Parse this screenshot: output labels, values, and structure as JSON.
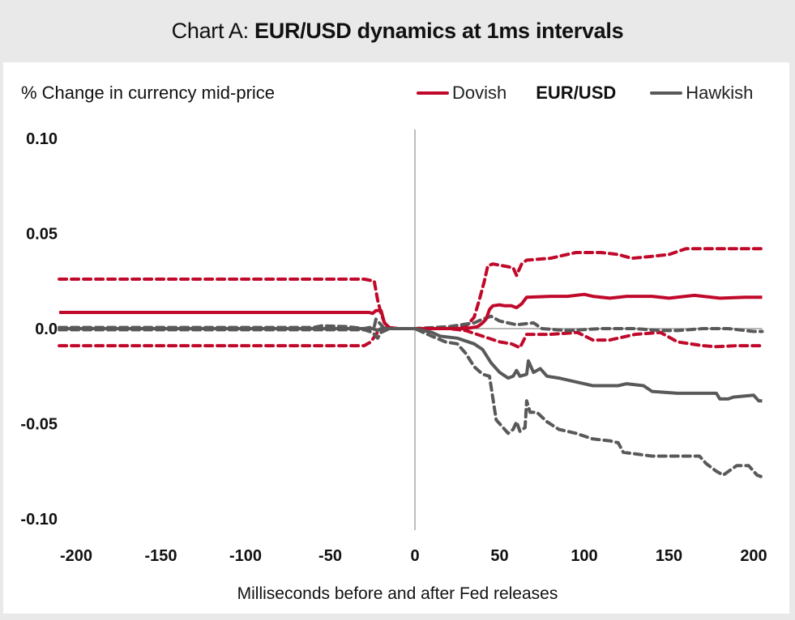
{
  "header": {
    "title_prefix": "Chart A: ",
    "title_bold": "EUR/USD dynamics at 1ms intervals"
  },
  "colors": {
    "dovish": "#c0092a",
    "hawkish": "#595959",
    "zero_line": "#8c8c8c",
    "vertical_line": "#bdbdbd"
  },
  "chart_data": {
    "type": "line",
    "title": "Chart A: EUR/USD dynamics at 1ms intervals",
    "ylabel": "% Change in currency mid-price",
    "xlabel": "Milliseconds before and after Fed releases",
    "legend": {
      "placement": "top-right",
      "entries": [
        "Dovish",
        "EUR/USD",
        "Hawkish"
      ]
    },
    "xlim": [
      -210,
      205
    ],
    "ylim": [
      -0.1,
      0.1
    ],
    "x_ticks": [
      -200,
      -150,
      -100,
      -50,
      0,
      50,
      100,
      150,
      200
    ],
    "x_tick_labels": [
      "-200",
      "-150",
      "-100",
      "-50",
      "0",
      "50",
      "100",
      "150",
      "200"
    ],
    "y_ticks": [
      0.1,
      0.05,
      0.0,
      -0.05,
      -0.1
    ],
    "y_tick_labels": [
      "0.10",
      "0.05",
      "0.0",
      "-0.05",
      "-0.10"
    ],
    "grid": false,
    "series": [
      {
        "name": "Dovish mean",
        "group": "dovish",
        "style": "solid",
        "points": [
          [
            -210,
            0.0085
          ],
          [
            -27,
            0.0085
          ],
          [
            -25,
            0.008
          ],
          [
            -23,
            0.0095
          ],
          [
            -20,
            0.0095
          ],
          [
            -18,
            0.003
          ],
          [
            -15,
            0.0005
          ],
          [
            -10,
            0.0
          ],
          [
            0,
            0.0
          ],
          [
            30,
            0.0
          ],
          [
            37,
            0.001
          ],
          [
            40,
            0.003
          ],
          [
            42,
            0.005
          ],
          [
            44,
            0.01
          ],
          [
            46,
            0.012
          ],
          [
            50,
            0.0125
          ],
          [
            53,
            0.012
          ],
          [
            57,
            0.012
          ],
          [
            60,
            0.011
          ],
          [
            63,
            0.013
          ],
          [
            66,
            0.0165
          ],
          [
            80,
            0.017
          ],
          [
            90,
            0.017
          ],
          [
            100,
            0.018
          ],
          [
            105,
            0.017
          ],
          [
            115,
            0.016
          ],
          [
            125,
            0.017
          ],
          [
            140,
            0.017
          ],
          [
            150,
            0.016
          ],
          [
            165,
            0.0175
          ],
          [
            180,
            0.016
          ],
          [
            195,
            0.0165
          ],
          [
            205,
            0.0165
          ]
        ]
      },
      {
        "name": "Dovish upper band",
        "group": "dovish",
        "style": "dashed",
        "points": [
          [
            -210,
            0.026
          ],
          [
            -30,
            0.026
          ],
          [
            -24,
            0.025
          ],
          [
            -22,
            0.015
          ],
          [
            -20,
            0.008
          ],
          [
            -18,
            0.003
          ],
          [
            -15,
            0.0005
          ],
          [
            -10,
            0.0
          ],
          [
            0,
            0.0
          ],
          [
            30,
            0.001
          ],
          [
            35,
            0.006
          ],
          [
            38,
            0.015
          ],
          [
            41,
            0.025
          ],
          [
            43,
            0.033
          ],
          [
            46,
            0.034
          ],
          [
            52,
            0.033
          ],
          [
            58,
            0.032
          ],
          [
            60,
            0.028
          ],
          [
            63,
            0.034
          ],
          [
            66,
            0.036
          ],
          [
            80,
            0.037
          ],
          [
            95,
            0.04
          ],
          [
            110,
            0.04
          ],
          [
            120,
            0.039
          ],
          [
            128,
            0.037
          ],
          [
            140,
            0.038
          ],
          [
            150,
            0.039
          ],
          [
            160,
            0.042
          ],
          [
            175,
            0.042
          ],
          [
            190,
            0.042
          ],
          [
            205,
            0.042
          ]
        ]
      },
      {
        "name": "Dovish lower band",
        "group": "dovish",
        "style": "dashed",
        "points": [
          [
            -210,
            -0.009
          ],
          [
            -30,
            -0.009
          ],
          [
            -26,
            -0.007
          ],
          [
            -23,
            -0.003
          ],
          [
            -20,
            0.0
          ],
          [
            -15,
            0.0005
          ],
          [
            -10,
            0.0
          ],
          [
            0,
            0.0
          ],
          [
            20,
            0.0
          ],
          [
            30,
            -0.001
          ],
          [
            40,
            -0.004
          ],
          [
            50,
            -0.007
          ],
          [
            57,
            -0.008
          ],
          [
            62,
            -0.01
          ],
          [
            66,
            -0.003
          ],
          [
            80,
            -0.003
          ],
          [
            96,
            -0.002
          ],
          [
            105,
            -0.006
          ],
          [
            115,
            -0.006
          ],
          [
            130,
            -0.003
          ],
          [
            145,
            -0.002
          ],
          [
            155,
            -0.007
          ],
          [
            170,
            -0.009
          ],
          [
            178,
            -0.0095
          ],
          [
            190,
            -0.009
          ],
          [
            205,
            -0.009
          ]
        ]
      },
      {
        "name": "Hawkish mean",
        "group": "hawkish",
        "style": "solid",
        "points": [
          [
            -210,
            0.0
          ],
          [
            -25,
            0.0
          ],
          [
            -22,
            -0.001
          ],
          [
            -20,
            0.0
          ],
          [
            -15,
            0.0
          ],
          [
            0,
            0.0
          ],
          [
            10,
            -0.002
          ],
          [
            15,
            -0.004
          ],
          [
            25,
            -0.005
          ],
          [
            35,
            -0.008
          ],
          [
            40,
            -0.011
          ],
          [
            45,
            -0.018
          ],
          [
            50,
            -0.023
          ],
          [
            55,
            -0.026
          ],
          [
            58,
            -0.025
          ],
          [
            60,
            -0.022
          ],
          [
            62,
            -0.025
          ],
          [
            66,
            -0.024
          ],
          [
            67,
            -0.017
          ],
          [
            70,
            -0.023
          ],
          [
            74,
            -0.021
          ],
          [
            78,
            -0.025
          ],
          [
            85,
            -0.026
          ],
          [
            95,
            -0.028
          ],
          [
            105,
            -0.03
          ],
          [
            120,
            -0.03
          ],
          [
            125,
            -0.029
          ],
          [
            135,
            -0.03
          ],
          [
            140,
            -0.033
          ],
          [
            155,
            -0.034
          ],
          [
            170,
            -0.034
          ],
          [
            178,
            -0.034
          ],
          [
            180,
            -0.037
          ],
          [
            185,
            -0.037
          ],
          [
            188,
            -0.036
          ],
          [
            200,
            -0.035
          ],
          [
            203,
            -0.038
          ],
          [
            205,
            -0.038
          ]
        ]
      },
      {
        "name": "Hawkish upper band",
        "group": "hawkish",
        "style": "dashed",
        "points": [
          [
            -210,
            0.0006
          ],
          [
            -60,
            0.0006
          ],
          [
            -55,
            0.0015
          ],
          [
            -40,
            0.001
          ],
          [
            -30,
            0.0
          ],
          [
            -24,
            0.001
          ],
          [
            -23,
            0.005
          ],
          [
            -21,
            0.003
          ],
          [
            -18,
            0.0
          ],
          [
            0,
            0.0
          ],
          [
            20,
            0.001
          ],
          [
            35,
            0.003
          ],
          [
            40,
            0.005
          ],
          [
            45,
            0.0065
          ],
          [
            50,
            0.004
          ],
          [
            60,
            0.002
          ],
          [
            70,
            0.003
          ],
          [
            75,
            0.0
          ],
          [
            90,
            -0.001
          ],
          [
            110,
            0.0
          ],
          [
            130,
            0.0
          ],
          [
            145,
            -0.001
          ],
          [
            155,
            -0.001
          ],
          [
            170,
            0.0
          ],
          [
            185,
            0.0
          ],
          [
            200,
            -0.0015
          ],
          [
            205,
            -0.0015
          ]
        ]
      },
      {
        "name": "Hawkish lower band",
        "group": "hawkish",
        "style": "dashed",
        "points": [
          [
            -210,
            -0.0006
          ],
          [
            -30,
            -0.0006
          ],
          [
            -25,
            -0.002
          ],
          [
            -22,
            -0.005
          ],
          [
            -20,
            -0.002
          ],
          [
            -15,
            0.0
          ],
          [
            0,
            0.0
          ],
          [
            10,
            -0.004
          ],
          [
            18,
            -0.007
          ],
          [
            25,
            -0.008
          ],
          [
            30,
            -0.013
          ],
          [
            35,
            -0.02
          ],
          [
            40,
            -0.024
          ],
          [
            44,
            -0.025
          ],
          [
            48,
            -0.048
          ],
          [
            52,
            -0.052
          ],
          [
            55,
            -0.055
          ],
          [
            58,
            -0.053
          ],
          [
            60,
            -0.049
          ],
          [
            62,
            -0.054
          ],
          [
            65,
            -0.052
          ],
          [
            66,
            -0.038
          ],
          [
            68,
            -0.044
          ],
          [
            72,
            -0.044
          ],
          [
            78,
            -0.049
          ],
          [
            85,
            -0.053
          ],
          [
            95,
            -0.055
          ],
          [
            105,
            -0.058
          ],
          [
            115,
            -0.059
          ],
          [
            120,
            -0.06
          ],
          [
            123,
            -0.065
          ],
          [
            140,
            -0.067
          ],
          [
            160,
            -0.067
          ],
          [
            168,
            -0.067
          ],
          [
            172,
            -0.071
          ],
          [
            178,
            -0.075
          ],
          [
            182,
            -0.077
          ],
          [
            190,
            -0.072
          ],
          [
            197,
            -0.072
          ],
          [
            202,
            -0.077
          ],
          [
            205,
            -0.078
          ]
        ]
      }
    ]
  }
}
